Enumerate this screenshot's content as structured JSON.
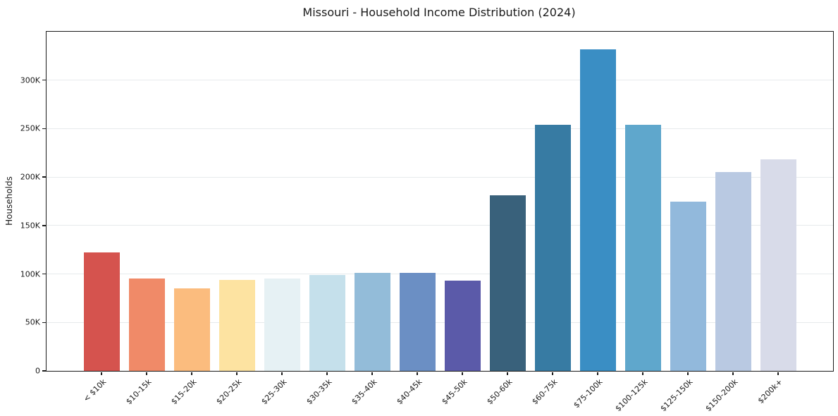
{
  "title": "Missouri - Household Income Distribution (2024)",
  "colors": {
    "background": "#ffffff",
    "grid": "#e7eaec",
    "axis": "#1a1a1a",
    "text": "#1a1a1a"
  },
  "chart_data": {
    "type": "bar",
    "title": "Missouri - Household Income Distribution (2024)",
    "xlabel": "",
    "ylabel": "Households",
    "grid": true,
    "legend": false,
    "ylim": [
      0,
      350000
    ],
    "categories": [
      "< $10k",
      "$10-15k",
      "$15-20k",
      "$20-25k",
      "$25-30k",
      "$30-35k",
      "$35-40k",
      "$40-45k",
      "$45-50k",
      "$50-60k",
      "$60-75k",
      "$75-100k",
      "$100-125k",
      "$125-150k",
      "$150-200k",
      "$200k+"
    ],
    "values": [
      122000,
      95000,
      85000,
      94000,
      95000,
      99000,
      101000,
      101000,
      93000,
      181000,
      254000,
      332000,
      254000,
      175000,
      205000,
      218000
    ],
    "bar_colors": [
      "#d5534e",
      "#f08a68",
      "#fbbc7e",
      "#fde3a1",
      "#e6f1f4",
      "#c5e0eb",
      "#93bcd9",
      "#6b8fc4",
      "#5b5aa9",
      "#39617b",
      "#377ba3",
      "#3a8ec4",
      "#5fa7cc",
      "#92b9dc",
      "#b9c9e2",
      "#d8dbe9"
    ],
    "ytick_values": [
      0,
      50000,
      100000,
      150000,
      200000,
      250000,
      300000
    ],
    "ytick_labels": [
      "0",
      "50K",
      "100K",
      "150K",
      "200K",
      "250K",
      "300K"
    ]
  }
}
